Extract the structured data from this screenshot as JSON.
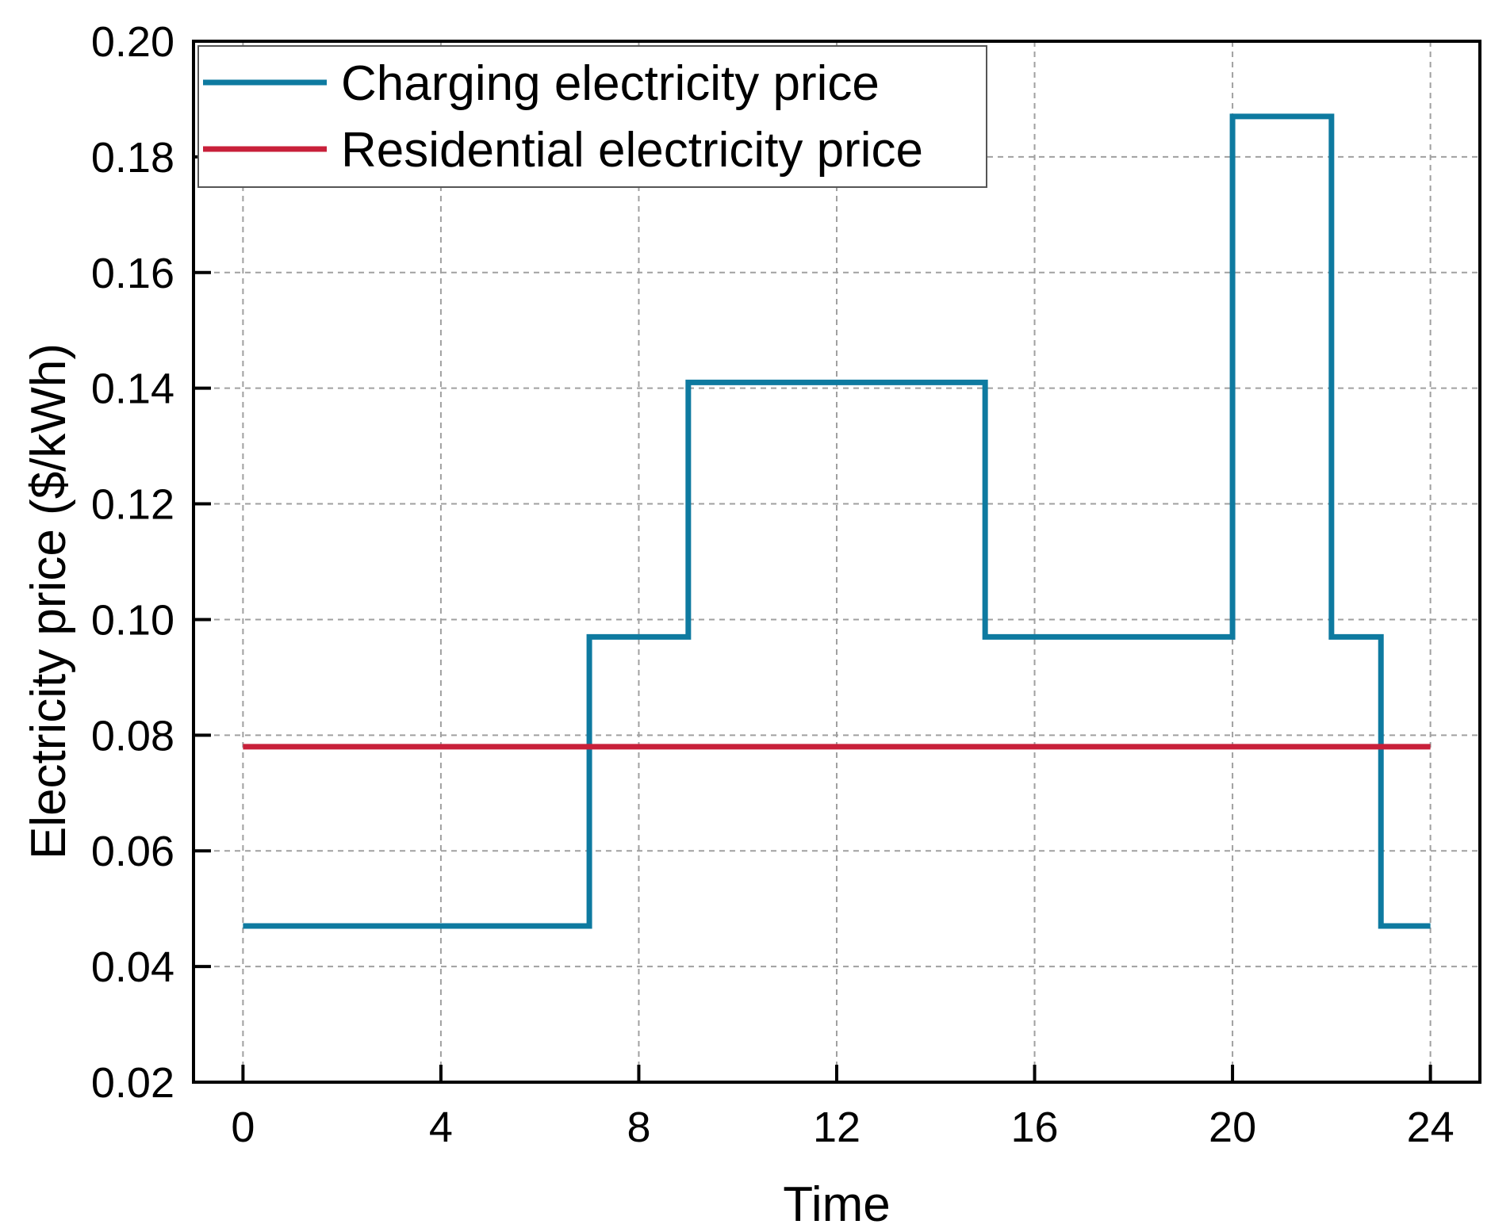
{
  "chart_data": {
    "type": "line",
    "title": "",
    "xlabel": "Time",
    "ylabel": "Electricity price ($/kWh)",
    "xlim": [
      -1,
      25
    ],
    "ylim": [
      0.02,
      0.2
    ],
    "xticks": [
      "0",
      "4",
      "8",
      "12",
      "16",
      "20",
      "24"
    ],
    "xtick_values": [
      0,
      4,
      8,
      12,
      16,
      20,
      24
    ],
    "yticks": [
      "0.02",
      "0.04",
      "0.06",
      "0.08",
      "0.10",
      "0.12",
      "0.14",
      "0.16",
      "0.18",
      "0.20"
    ],
    "ytick_values": [
      0.02,
      0.04,
      0.06,
      0.08,
      0.1,
      0.12,
      0.14,
      0.16,
      0.18,
      0.2
    ],
    "grid": true,
    "legend_position": "top-left",
    "series": [
      {
        "name": "Charging electricity price",
        "color": "#0e7aa0",
        "step": true,
        "x": [
          0,
          7,
          9,
          15,
          20,
          22,
          23,
          24
        ],
        "y": [
          0.047,
          0.097,
          0.141,
          0.097,
          0.187,
          0.097,
          0.047,
          0.047
        ]
      },
      {
        "name": "Residential electricity price",
        "color": "#c8203a",
        "step": true,
        "x": [
          0,
          24
        ],
        "y": [
          0.078,
          0.078
        ]
      }
    ]
  }
}
